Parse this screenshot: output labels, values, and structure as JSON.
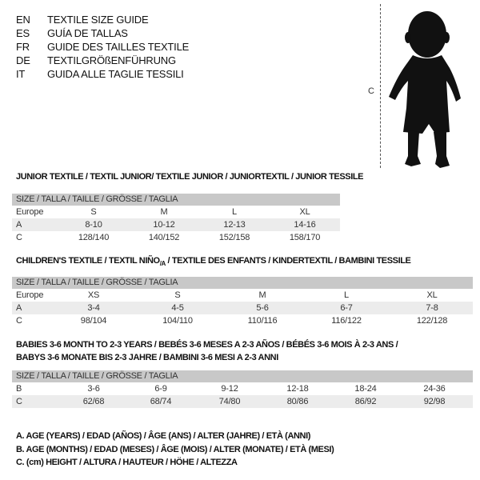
{
  "languages": [
    {
      "code": "EN",
      "text": "TEXTILE SIZE GUIDE"
    },
    {
      "code": "ES",
      "text": "GUÍA DE TALLAS"
    },
    {
      "code": "FR",
      "text": "GUIDE DES TAILLES TEXTILE"
    },
    {
      "code": "DE",
      "text": "TEXTILGRÖßENFÜHRUNG"
    },
    {
      "code": "IT",
      "text": "GUIDA ALLE TAGLIE TESSILI"
    }
  ],
  "figure": {
    "measure_label": "C"
  },
  "size_header": "SIZE / TALLA / TAILLE / GRÖSSE / TAGLIA",
  "junior": {
    "title": "JUNIOR TEXTILE / TEXTIL JUNIOR/ TEXTILE JUNIOR / JUNIORTEXTIL / JUNIOR TESSILE",
    "rows": [
      {
        "label": "Europe",
        "cells": [
          "S",
          "M",
          "L",
          "XL"
        ]
      },
      {
        "label": "A",
        "cells": [
          "8-10",
          "10-12",
          "12-13",
          "14-16"
        ]
      },
      {
        "label": "C",
        "cells": [
          "128/140",
          "140/152",
          "152/158",
          "158/170"
        ]
      }
    ]
  },
  "children": {
    "title_a": "CHILDREN'S TEXTILE / TEXTIL NIÑO",
    "title_sub": "/A",
    "title_b": " / TEXTILE DES ENFANTS / KINDERTEXTIL / BAMBINI TESSILE",
    "rows": [
      {
        "label": "Europe",
        "cells": [
          "XS",
          "S",
          "M",
          "L",
          "XL"
        ]
      },
      {
        "label": "A",
        "cells": [
          "3-4",
          "4-5",
          "5-6",
          "6-7",
          "7-8"
        ]
      },
      {
        "label": "C",
        "cells": [
          "98/104",
          "104/110",
          "110/116",
          "116/122",
          "122/128"
        ]
      }
    ]
  },
  "babies": {
    "title_line1": "BABIES 3-6 MONTH TO 2-3 YEARS / BEBÉS 3-6 MESES A 2-3 AÑOS / BÉBÉS 3-6 MOIS À 2-3 ANS /",
    "title_line2": "BABYS 3-6 MONATE BIS 2-3 JAHRE / BAMBINI 3-6 MESI A 2-3 ANNI",
    "rows": [
      {
        "label": "B",
        "cells": [
          "3-6",
          "6-9",
          "9-12",
          "12-18",
          "18-24",
          "24-36"
        ]
      },
      {
        "label": "C",
        "cells": [
          "62/68",
          "68/74",
          "74/80",
          "80/86",
          "86/92",
          "92/98"
        ]
      }
    ]
  },
  "legend": [
    "A. AGE (YEARS) / EDAD (AÑOS) / ÂGE (ANS) / ALTER (JAHRE) / ETÀ (ANNI)",
    "B. AGE (MONTHS) / EDAD (MESES) / ÂGE (MOIS) / ALTER (MONATE) / ETÀ (MESI)",
    "C. (cm) HEIGHT / ALTURA / HAUTEUR / HÖHE / ALTEZZA"
  ]
}
